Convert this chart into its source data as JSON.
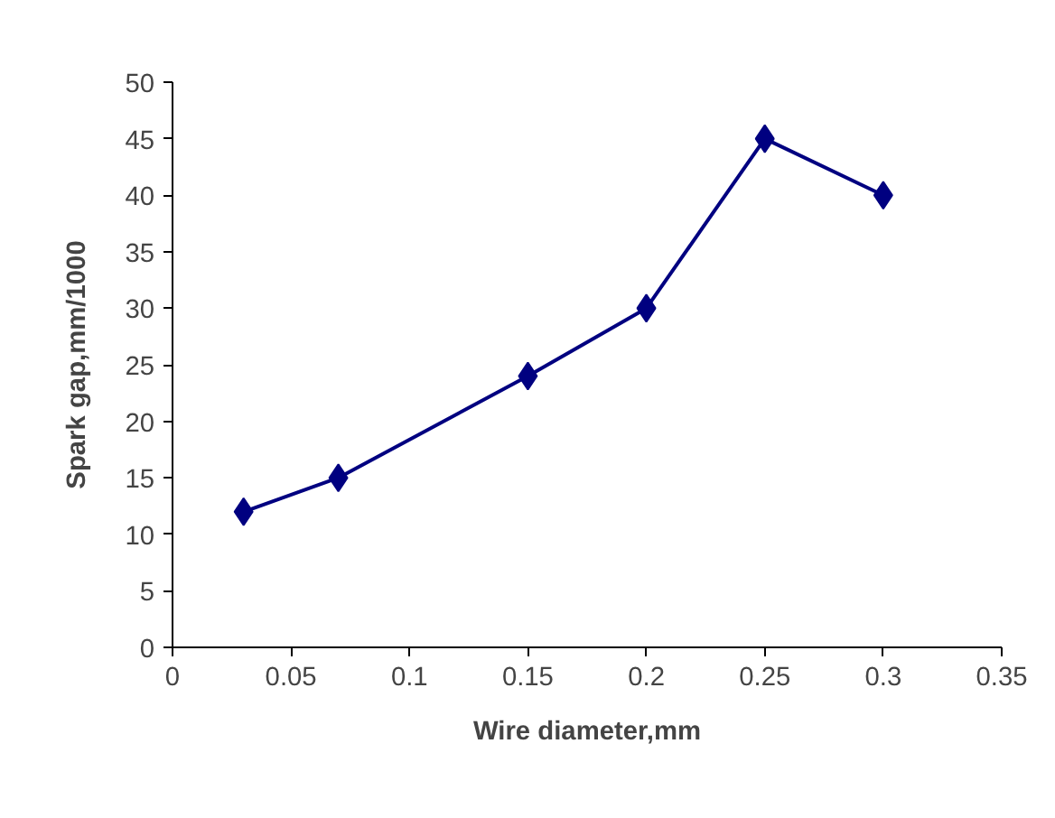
{
  "chart_data": {
    "type": "line",
    "xlabel": "Wire diameter,mm",
    "ylabel": "Spark gap,mm/1000",
    "x": [
      0.03,
      0.07,
      0.15,
      0.2,
      0.25,
      0.3
    ],
    "series": [
      {
        "color": "#000080",
        "values": [
          12,
          15,
          24,
          30,
          45,
          40
        ]
      }
    ],
    "xlim": [
      0,
      0.35
    ],
    "xticks": [
      0,
      0.05,
      0.1,
      0.15,
      0.2,
      0.25,
      0.3,
      0.35
    ],
    "ylim": [
      0,
      50
    ],
    "yticks": [
      0,
      5,
      10,
      15,
      20,
      25,
      30,
      35,
      40,
      45,
      50
    ],
    "grid": false,
    "marker": "diamond",
    "line_style": "solid"
  }
}
